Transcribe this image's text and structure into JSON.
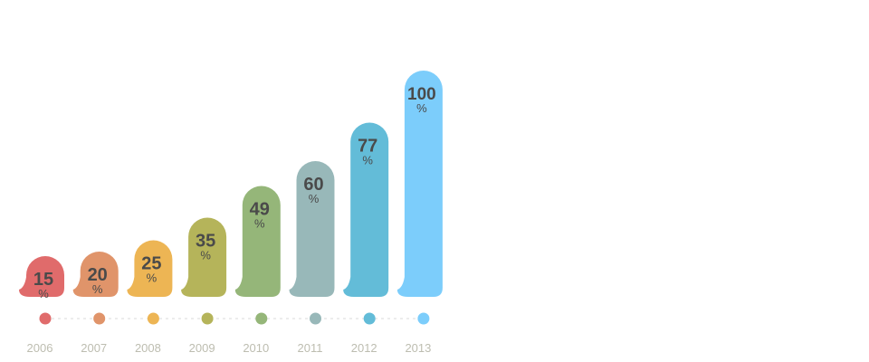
{
  "chart_data": {
    "type": "bar",
    "title": "",
    "xlabel": "",
    "ylabel": "",
    "ylim": [
      0,
      100
    ],
    "categories": [
      "2006",
      "2007",
      "2008",
      "2009",
      "2010",
      "2011",
      "2012",
      "2013"
    ],
    "values": [
      15,
      20,
      25,
      35,
      49,
      60,
      77,
      100
    ],
    "value_suffix": "%",
    "colors": [
      "#e06b6b",
      "#e0946a",
      "#edb554",
      "#b5b45a",
      "#95b679",
      "#98b8b9",
      "#63bcd8",
      "#7ccdfb"
    ],
    "grid": false,
    "legend": "none"
  }
}
